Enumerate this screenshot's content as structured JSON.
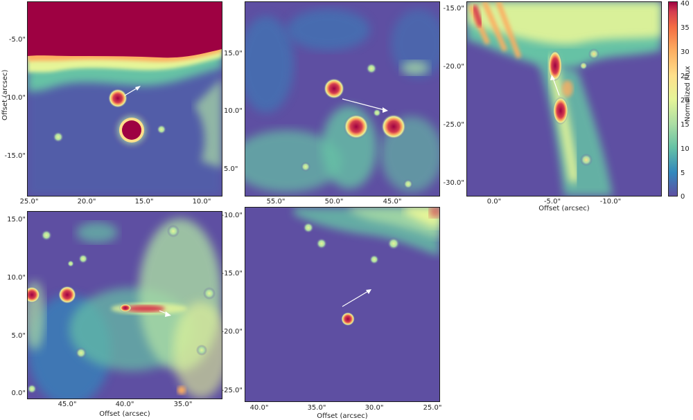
{
  "figure": {
    "colorbar": {
      "label": "Normalized Flux",
      "ticks": [
        "0",
        "5",
        "10",
        "15",
        "20",
        "25",
        "30",
        "35",
        "40"
      ],
      "colormap": "Spectral_r",
      "range": [
        0,
        40
      ]
    },
    "panels": [
      {
        "id": "panel-1",
        "ylabel": "Offset (arcsec)",
        "xlabel": "",
        "yticks": [
          "-5.0\"",
          "-10.0\"",
          "-15.0\""
        ],
        "xticks": [
          "25.0\"",
          "20.0\"",
          "15.0\"",
          "10.0\""
        ]
      },
      {
        "id": "panel-2",
        "ylabel": "",
        "xlabel": "",
        "yticks": [
          "15.0\"",
          "10.0\"",
          "5.0\""
        ],
        "xticks": [
          "55.0\"",
          "50.0\"",
          "45.0\""
        ]
      },
      {
        "id": "panel-3",
        "ylabel": "",
        "xlabel": "Offset (arcsec)",
        "yticks": [
          "-15.0\"",
          "-20.0\"",
          "-25.0\"",
          "-30.0\""
        ],
        "xticks": [
          "0.0\"",
          "-5.0\"",
          "-10.0\""
        ]
      },
      {
        "id": "panel-4",
        "ylabel": "",
        "xlabel": "Offset (arcsec)",
        "yticks": [
          "15.0\"",
          "10.0\"",
          "5.0\"",
          "0.0\""
        ],
        "xticks": [
          "45.0\"",
          "40.0\"",
          "35.0\""
        ]
      },
      {
        "id": "panel-5",
        "ylabel": "",
        "xlabel": "Offset (arcsec)",
        "yticks": [
          "-10.0\"",
          "-15.0\"",
          "-20.0\"",
          "-25.0\""
        ],
        "xticks": [
          "40.0\"",
          "35.0\"",
          "30.0\"",
          "25.0\""
        ]
      }
    ]
  }
}
